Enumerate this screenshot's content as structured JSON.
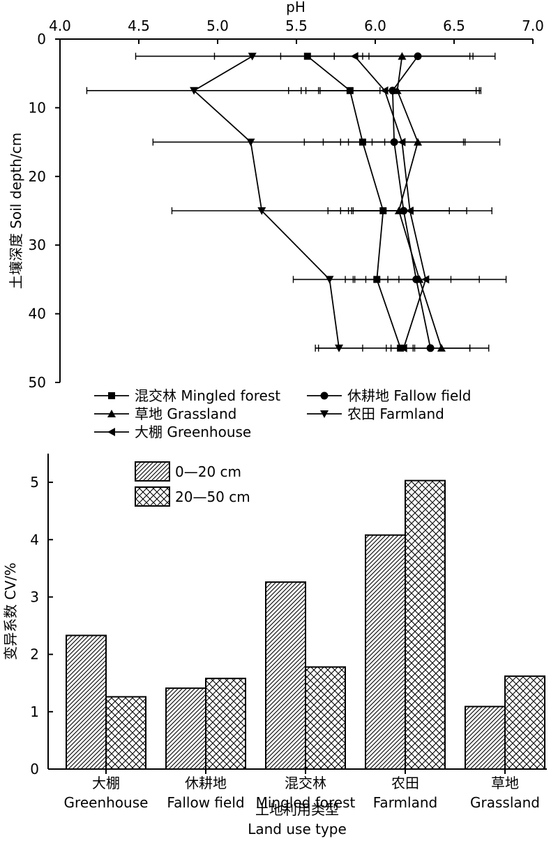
{
  "chart_data": [
    {
      "type": "line",
      "orientation": "vertical-profile",
      "title": "",
      "xlabel": "pH",
      "ylabel": "土壤深度 Soil depth/cm",
      "xlim": [
        4.0,
        7.0
      ],
      "ylim": [
        0,
        50
      ],
      "x_axis_position": "top",
      "y_inverted": true,
      "x_ticks": [
        "4.0",
        "4.5",
        "5.0",
        "5.5",
        "6.0",
        "6.5",
        "7.0"
      ],
      "y_ticks": [
        "0",
        "10",
        "20",
        "30",
        "40",
        "50"
      ],
      "depths": [
        2.5,
        7.5,
        15,
        25,
        35,
        45
      ],
      "legend_placement": "bottom",
      "series": [
        {
          "name": "混交林 Mingled forest",
          "marker": "square",
          "values": [
            5.57,
            5.84,
            5.92,
            6.05,
            6.01,
            6.16
          ],
          "error": [
            0.17,
            0.19,
            0.14,
            0.19,
            0.14,
            0.09
          ]
        },
        {
          "name": "休耕地 Fallow field",
          "marker": "circle",
          "values": [
            6.27,
            6.11,
            6.12,
            6.18,
            6.26,
            6.35
          ],
          "error": [
            0.35,
            0.55,
            0.45,
            0.4,
            0.4,
            0.25
          ]
        },
        {
          "name": "草地 Grassland",
          "marker": "triangle-up",
          "values": [
            6.17,
            6.14,
            6.27,
            6.15,
            6.28,
            6.42
          ],
          "error": [
            0.43,
            0.5,
            0.29,
            0.32,
            0.2,
            0.18
          ]
        },
        {
          "name": "农田 Farmland",
          "marker": "triangle-down",
          "values": [
            5.22,
            4.85,
            5.21,
            5.28,
            5.71,
            5.77
          ],
          "error": [
            0.74,
            0.68,
            0.62,
            0.57,
            0.23,
            0.15
          ]
        },
        {
          "name": "大棚 Greenhouse",
          "marker": "triangle-left",
          "values": [
            5.87,
            6.06,
            6.17,
            6.22,
            6.32,
            6.18
          ],
          "error": [
            0.89,
            0.61,
            0.62,
            0.52,
            0.51,
            0.54
          ]
        }
      ]
    },
    {
      "type": "bar",
      "title": "",
      "xlabel": "土地利用类型 Land use type",
      "xlabel_lines": [
        "土地利用类型",
        "Land use type"
      ],
      "ylabel": "变异系数 CV/%",
      "ylim": [
        0,
        5.5
      ],
      "y_ticks": [
        "0",
        "1",
        "2",
        "3",
        "4",
        "5"
      ],
      "categories": [
        "大棚 Greenhouse",
        "休耕地 Fallow field",
        "混交林 Mingled forest",
        "农田 Farmland",
        "草地 Grassland"
      ],
      "category_lines": [
        [
          "大棚",
          "Greenhouse"
        ],
        [
          "休耕地",
          "Fallow field"
        ],
        [
          "混交林",
          "Mingled forest"
        ],
        [
          "农田",
          "Farmland"
        ],
        [
          "草地",
          "Grassland"
        ]
      ],
      "legend_placement": "top-left",
      "series": [
        {
          "name": "0—20 cm",
          "pattern": "diagonal-hatch",
          "values": [
            2.33,
            1.41,
            3.26,
            4.08,
            1.09
          ]
        },
        {
          "name": "20—50 cm",
          "pattern": "crosshatch",
          "values": [
            1.26,
            1.58,
            1.78,
            5.03,
            1.62
          ]
        }
      ]
    }
  ]
}
